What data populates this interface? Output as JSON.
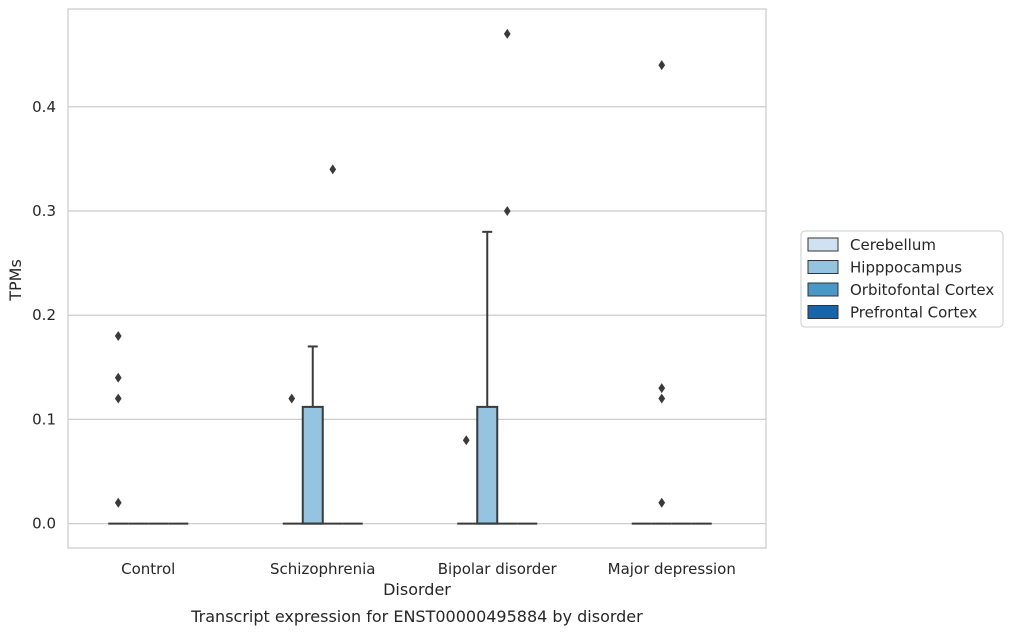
{
  "chart_data": {
    "type": "box",
    "caption": "Transcript expression for ENST00000495884 by disorder",
    "xlabel": "Disorder",
    "ylabel": "TPMs",
    "categories": [
      "Control",
      "Schizophrenia",
      "Bipolar disorder",
      "Major depression"
    ],
    "ylim": [
      -0.023,
      0.49
    ],
    "yticks": [
      0.0,
      0.1,
      0.2,
      0.3,
      0.4
    ],
    "ytick_labels": [
      "0.0",
      "0.1",
      "0.2",
      "0.3",
      "0.4"
    ],
    "grid": true,
    "legend_position": "right, outside plot",
    "series": [
      {
        "name": "Cerebellum",
        "color": "#d0e1f2",
        "boxes": [
          {
            "category": "Control",
            "q1": 0,
            "median": 0,
            "q3": 0,
            "whisker_low": 0,
            "whisker_high": 0,
            "outliers": [
              0.02,
              0.12,
              0.14,
              0.18
            ]
          },
          {
            "category": "Schizophrenia",
            "q1": 0,
            "median": 0,
            "q3": 0,
            "whisker_low": 0,
            "whisker_high": 0,
            "outliers": []
          },
          {
            "category": "Bipolar disorder",
            "q1": 0,
            "median": 0,
            "q3": 0,
            "whisker_low": 0,
            "whisker_high": 0,
            "outliers": []
          },
          {
            "category": "Major depression",
            "q1": 0,
            "median": 0,
            "q3": 0,
            "whisker_low": 0,
            "whisker_high": 0,
            "outliers": []
          }
        ]
      },
      {
        "name": "Hipppocampus",
        "color": "#94c4df",
        "boxes": [
          {
            "category": "Control",
            "q1": 0,
            "median": 0,
            "q3": 0,
            "whisker_low": 0,
            "whisker_high": 0,
            "outliers": []
          },
          {
            "category": "Schizophrenia",
            "q1": 0,
            "median": 0,
            "q3": 0.112,
            "whisker_low": 0,
            "whisker_high": 0.17,
            "outliers": []
          },
          {
            "category": "Bipolar disorder",
            "q1": 0,
            "median": 0,
            "q3": 0.112,
            "whisker_low": 0,
            "whisker_high": 0.28,
            "outliers": []
          },
          {
            "category": "Major depression",
            "q1": 0,
            "median": 0,
            "q3": 0,
            "whisker_low": 0,
            "whisker_high": 0,
            "outliers": [
              0.02,
              0.12,
              0.13,
              0.44
            ]
          }
        ]
      },
      {
        "name": "Orbitofontal Cortex",
        "color": "#4a98c9",
        "boxes": [
          {
            "category": "Control",
            "q1": 0,
            "median": 0,
            "q3": 0,
            "whisker_low": 0,
            "whisker_high": 0,
            "outliers": []
          },
          {
            "category": "Schizophrenia",
            "q1": 0,
            "median": 0,
            "q3": 0,
            "whisker_low": 0,
            "whisker_high": 0,
            "outliers": [
              0.34
            ]
          },
          {
            "category": "Bipolar disorder",
            "q1": 0,
            "median": 0,
            "q3": 0,
            "whisker_low": 0,
            "whisker_high": 0,
            "outliers": [
              0.3,
              0.47
            ]
          },
          {
            "category": "Major depression",
            "q1": 0,
            "median": 0,
            "q3": 0,
            "whisker_low": 0,
            "whisker_high": 0,
            "outliers": []
          }
        ]
      },
      {
        "name": "Prefrontal Cortex",
        "color": "#1764ab",
        "boxes": [
          {
            "category": "Control",
            "q1": 0,
            "median": 0,
            "q3": 0,
            "whisker_low": 0,
            "whisker_high": 0,
            "outliers": []
          },
          {
            "category": "Schizophrenia",
            "q1": 0,
            "median": 0,
            "q3": 0,
            "whisker_low": 0,
            "whisker_high": 0,
            "outliers": []
          },
          {
            "category": "Bipolar disorder",
            "q1": 0,
            "median": 0,
            "q3": 0,
            "whisker_low": 0,
            "whisker_high": 0,
            "outliers": []
          },
          {
            "category": "Major depression",
            "q1": 0,
            "median": 0,
            "q3": 0,
            "whisker_low": 0,
            "whisker_high": 0,
            "outliers": []
          }
        ]
      }
    ],
    "extra_outliers": [
      {
        "category": "Schizophrenia",
        "position": "left of box",
        "value": 0.12
      },
      {
        "category": "Bipolar disorder",
        "position": "left of box",
        "value": 0.08
      }
    ]
  }
}
